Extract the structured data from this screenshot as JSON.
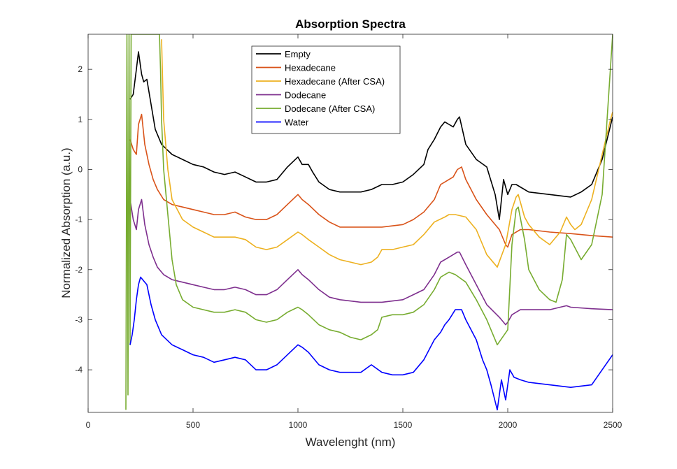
{
  "chart_data": {
    "type": "line",
    "title": "Absorption Spectra",
    "xlabel": "Wavelenght (nm)",
    "ylabel": "Normalized Absorption (a.u.)",
    "xlim": [
      0,
      2500
    ],
    "ylim": [
      -4.85,
      2.7
    ],
    "xticks": [
      0,
      500,
      1000,
      1500,
      2000,
      2500
    ],
    "xtick_labels": [
      "0",
      "500",
      "1000",
      "1500",
      "2000",
      "2500"
    ],
    "yticks": [
      2,
      1,
      0,
      -1,
      -2,
      -3,
      -4
    ],
    "ytick_labels": [
      "2",
      "1",
      "0",
      "-1",
      "-2",
      "-3",
      "-4"
    ],
    "grid": false,
    "legend_position": "top-center",
    "series": [
      {
        "name": "Empty",
        "color": "#000000",
        "x": [
          200,
          215,
          230,
          240,
          255,
          265,
          280,
          300,
          320,
          350,
          400,
          450,
          500,
          550,
          600,
          650,
          700,
          750,
          800,
          850,
          900,
          950,
          1000,
          1020,
          1050,
          1070,
          1100,
          1150,
          1200,
          1300,
          1350,
          1400,
          1450,
          1500,
          1550,
          1600,
          1620,
          1650,
          1680,
          1700,
          1720,
          1740,
          1760,
          1770,
          1800,
          1850,
          1900,
          1940,
          1960,
          1980,
          2000,
          2020,
          2040,
          2100,
          2200,
          2300,
          2350,
          2400,
          2450,
          2500
        ],
        "y": [
          1.4,
          1.5,
          2.0,
          2.35,
          1.9,
          1.75,
          1.8,
          1.3,
          0.8,
          0.5,
          0.3,
          0.2,
          0.1,
          0.05,
          -0.05,
          -0.1,
          -0.05,
          -0.15,
          -0.25,
          -0.25,
          -0.2,
          0.05,
          0.25,
          0.1,
          0.1,
          -0.05,
          -0.25,
          -0.4,
          -0.45,
          -0.45,
          -0.4,
          -0.3,
          -0.3,
          -0.25,
          -0.1,
          0.1,
          0.4,
          0.6,
          0.85,
          0.95,
          0.9,
          0.85,
          1.0,
          1.05,
          0.5,
          0.2,
          0.05,
          -0.5,
          -1.0,
          -0.2,
          -0.5,
          -0.3,
          -0.3,
          -0.45,
          -0.5,
          -0.55,
          -0.45,
          -0.3,
          0.2,
          1.05
        ]
      },
      {
        "name": "Hexadecane",
        "color": "#d95319",
        "x": [
          200,
          215,
          230,
          240,
          255,
          270,
          290,
          310,
          330,
          360,
          400,
          450,
          500,
          550,
          600,
          650,
          700,
          750,
          800,
          850,
          900,
          950,
          1000,
          1020,
          1050,
          1100,
          1150,
          1200,
          1300,
          1400,
          1500,
          1550,
          1600,
          1650,
          1680,
          1700,
          1720,
          1740,
          1760,
          1780,
          1800,
          1850,
          1900,
          1960,
          1990,
          2000,
          2020,
          2060,
          2100,
          2200,
          2300,
          2400,
          2500
        ],
        "y": [
          0.6,
          0.4,
          0.3,
          0.9,
          1.1,
          0.5,
          0.1,
          -0.2,
          -0.4,
          -0.6,
          -0.7,
          -0.75,
          -0.8,
          -0.85,
          -0.9,
          -0.9,
          -0.85,
          -0.95,
          -1.0,
          -1.0,
          -0.9,
          -0.7,
          -0.5,
          -0.6,
          -0.7,
          -0.9,
          -1.05,
          -1.15,
          -1.15,
          -1.15,
          -1.1,
          -1.0,
          -0.85,
          -0.6,
          -0.3,
          -0.25,
          -0.2,
          -0.15,
          0.0,
          0.05,
          -0.2,
          -0.6,
          -0.9,
          -1.2,
          -1.5,
          -1.55,
          -1.3,
          -1.2,
          -1.2,
          -1.25,
          -1.28,
          -1.32,
          -1.35
        ]
      },
      {
        "name": "Hexadecane (After CSA)",
        "color": "#edb120",
        "x": [
          350,
          360,
          380,
          400,
          450,
          500,
          550,
          600,
          650,
          700,
          750,
          800,
          850,
          900,
          950,
          1000,
          1020,
          1050,
          1100,
          1150,
          1200,
          1250,
          1300,
          1350,
          1380,
          1400,
          1450,
          1500,
          1550,
          1600,
          1650,
          1700,
          1720,
          1750,
          1800,
          1850,
          1900,
          1950,
          1990,
          2020,
          2040,
          2050,
          2080,
          2100,
          2150,
          2200,
          2250,
          2280,
          2300,
          2320,
          2350,
          2400,
          2450,
          2490,
          2500
        ],
        "y": [
          2.6,
          1.0,
          0.0,
          -0.6,
          -1.0,
          -1.15,
          -1.25,
          -1.35,
          -1.35,
          -1.35,
          -1.4,
          -1.55,
          -1.6,
          -1.55,
          -1.4,
          -1.25,
          -1.3,
          -1.4,
          -1.55,
          -1.7,
          -1.8,
          -1.85,
          -1.9,
          -1.85,
          -1.75,
          -1.6,
          -1.6,
          -1.55,
          -1.5,
          -1.3,
          -1.05,
          -0.95,
          -0.9,
          -0.9,
          -0.95,
          -1.2,
          -1.7,
          -1.95,
          -1.5,
          -0.8,
          -0.55,
          -0.5,
          -0.95,
          -1.1,
          -1.35,
          -1.5,
          -1.25,
          -0.95,
          -1.1,
          -1.2,
          -1.1,
          -0.6,
          0.3,
          1.0,
          1.15
        ]
      },
      {
        "name": "Dodecane",
        "color": "#7e2f8e",
        "x": [
          200,
          215,
          230,
          240,
          255,
          270,
          290,
          310,
          330,
          360,
          400,
          450,
          500,
          550,
          600,
          650,
          700,
          750,
          800,
          850,
          900,
          950,
          1000,
          1020,
          1050,
          1100,
          1150,
          1200,
          1300,
          1400,
          1500,
          1550,
          1600,
          1650,
          1680,
          1700,
          1720,
          1740,
          1760,
          1770,
          1800,
          1850,
          1900,
          1960,
          1990,
          2000,
          2020,
          2060,
          2100,
          2200,
          2250,
          2280,
          2300,
          2400,
          2500
        ],
        "y": [
          -0.6,
          -1.0,
          -1.2,
          -0.8,
          -0.6,
          -1.1,
          -1.5,
          -1.75,
          -1.95,
          -2.1,
          -2.2,
          -2.25,
          -2.3,
          -2.35,
          -2.4,
          -2.4,
          -2.35,
          -2.4,
          -2.5,
          -2.5,
          -2.4,
          -2.2,
          -2.0,
          -2.1,
          -2.2,
          -2.4,
          -2.55,
          -2.6,
          -2.65,
          -2.65,
          -2.6,
          -2.5,
          -2.4,
          -2.1,
          -1.85,
          -1.8,
          -1.75,
          -1.7,
          -1.65,
          -1.65,
          -1.9,
          -2.3,
          -2.7,
          -2.95,
          -3.1,
          -3.05,
          -2.9,
          -2.8,
          -2.8,
          -2.8,
          -2.75,
          -2.72,
          -2.75,
          -2.78,
          -2.8
        ]
      },
      {
        "name": "Dodecane (After CSA)",
        "color": "#77ac30",
        "x": [
          180,
          185,
          190,
          195,
          200,
          205,
          340,
          345,
          350,
          360,
          380,
          400,
          420,
          450,
          500,
          550,
          600,
          650,
          700,
          750,
          800,
          850,
          900,
          950,
          1000,
          1020,
          1050,
          1100,
          1150,
          1200,
          1250,
          1300,
          1350,
          1380,
          1400,
          1450,
          1500,
          1550,
          1600,
          1650,
          1680,
          1700,
          1720,
          1750,
          1800,
          1850,
          1900,
          1950,
          2000,
          2020,
          2040,
          2050,
          2080,
          2100,
          2150,
          2200,
          2230,
          2260,
          2280,
          2300,
          2350,
          2400,
          2450,
          2500
        ],
        "y": [
          -4.8,
          2.7,
          -4.5,
          2.7,
          -3.5,
          2.7,
          2.7,
          2.0,
          1.0,
          0.0,
          -0.9,
          -1.8,
          -2.3,
          -2.6,
          -2.75,
          -2.8,
          -2.85,
          -2.85,
          -2.8,
          -2.85,
          -3.0,
          -3.05,
          -3.0,
          -2.85,
          -2.75,
          -2.8,
          -2.9,
          -3.1,
          -3.2,
          -3.25,
          -3.35,
          -3.4,
          -3.3,
          -3.2,
          -2.95,
          -2.9,
          -2.9,
          -2.85,
          -2.7,
          -2.4,
          -2.15,
          -2.1,
          -2.05,
          -2.1,
          -2.25,
          -2.6,
          -3.0,
          -3.5,
          -3.2,
          -1.5,
          -0.8,
          -0.75,
          -1.4,
          -2.0,
          -2.4,
          -2.6,
          -2.65,
          -2.2,
          -1.3,
          -1.4,
          -1.8,
          -1.5,
          -0.5,
          2.7
        ]
      },
      {
        "name": "Water",
        "color": "#0000ff",
        "x": [
          200,
          210,
          220,
          230,
          240,
          250,
          260,
          270,
          280,
          300,
          320,
          350,
          400,
          450,
          500,
          550,
          600,
          650,
          700,
          750,
          800,
          850,
          900,
          950,
          1000,
          1020,
          1050,
          1100,
          1150,
          1200,
          1250,
          1300,
          1350,
          1400,
          1450,
          1500,
          1550,
          1600,
          1650,
          1680,
          1700,
          1720,
          1750,
          1780,
          1800,
          1850,
          1880,
          1900,
          1920,
          1950,
          1970,
          1990,
          2010,
          2030,
          2060,
          2100,
          2200,
          2300,
          2400,
          2450,
          2500
        ],
        "y": [
          -3.5,
          -3.3,
          -3.0,
          -2.6,
          -2.3,
          -2.15,
          -2.2,
          -2.25,
          -2.3,
          -2.7,
          -3.0,
          -3.3,
          -3.5,
          -3.6,
          -3.7,
          -3.75,
          -3.85,
          -3.8,
          -3.75,
          -3.8,
          -4.0,
          -4.0,
          -3.9,
          -3.7,
          -3.5,
          -3.55,
          -3.65,
          -3.9,
          -4.0,
          -4.05,
          -4.05,
          -4.05,
          -3.9,
          -4.05,
          -4.1,
          -4.1,
          -4.05,
          -3.8,
          -3.4,
          -3.25,
          -3.1,
          -3.0,
          -2.8,
          -2.8,
          -3.0,
          -3.4,
          -3.8,
          -4.0,
          -4.3,
          -4.8,
          -4.2,
          -4.6,
          -4.0,
          -4.15,
          -4.2,
          -4.25,
          -4.3,
          -4.35,
          -4.3,
          -4.0,
          -3.7
        ]
      }
    ]
  }
}
